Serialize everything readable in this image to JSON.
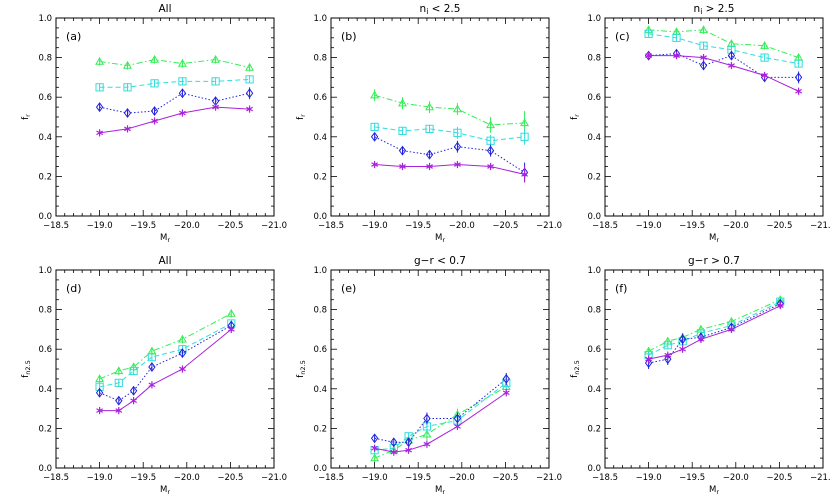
{
  "colors": {
    "green": "#33ee55",
    "cyan": "#33dddd",
    "blue": "#2222dd",
    "magenta": "#aa22dd",
    "axis": "#000000"
  },
  "chart_data": [
    {
      "type": "line",
      "panel_label": "(a)",
      "title": "All",
      "xlabel": "Mr",
      "ylabel": "fr",
      "xlim": [
        -18.5,
        -21.0
      ],
      "ylim": [
        0.0,
        1.0
      ],
      "xticks": [
        "-18.5",
        "-19.0",
        "-19.5",
        "-20.0",
        "-20.5",
        "-21.0"
      ],
      "yticks": [
        "0.0",
        "0.2",
        "0.4",
        "0.6",
        "0.8",
        "1.0"
      ],
      "series": [
        {
          "color": "green",
          "marker": "triangle",
          "style": "dashdot",
          "x": [
            -19.0,
            -19.32,
            -19.63,
            -19.95,
            -20.33,
            -20.72
          ],
          "y": [
            0.78,
            0.76,
            0.79,
            0.77,
            0.79,
            0.75
          ],
          "err": [
            0.02,
            0.02,
            0.02,
            0.02,
            0.02,
            0.02
          ]
        },
        {
          "color": "cyan",
          "marker": "square",
          "style": "dashed",
          "x": [
            -19.0,
            -19.32,
            -19.63,
            -19.95,
            -20.33,
            -20.72
          ],
          "y": [
            0.65,
            0.65,
            0.67,
            0.68,
            0.68,
            0.69
          ],
          "err": [
            0.02,
            0.02,
            0.02,
            0.02,
            0.02,
            0.02
          ]
        },
        {
          "color": "blue",
          "marker": "diamond",
          "style": "dotted",
          "x": [
            -19.0,
            -19.32,
            -19.63,
            -19.95,
            -20.33,
            -20.72
          ],
          "y": [
            0.55,
            0.52,
            0.53,
            0.62,
            0.58,
            0.62
          ],
          "err": [
            0.02,
            0.02,
            0.02,
            0.02,
            0.02,
            0.03
          ]
        },
        {
          "color": "magenta",
          "marker": "asterisk",
          "style": "solid",
          "x": [
            -19.0,
            -19.32,
            -19.63,
            -19.95,
            -20.33,
            -20.72
          ],
          "y": [
            0.42,
            0.44,
            0.48,
            0.52,
            0.55,
            0.54
          ],
          "err": [
            0.01,
            0.01,
            0.01,
            0.01,
            0.01,
            0.01
          ]
        }
      ]
    },
    {
      "type": "line",
      "panel_label": "(b)",
      "title": "ni < 2.5",
      "title_main": "n",
      "title_sub": "i",
      "title_rest": " < 2.5",
      "xlabel": "Mr",
      "ylabel": "fr",
      "xlim": [
        -18.5,
        -21.0
      ],
      "ylim": [
        0.0,
        1.0
      ],
      "xticks": [
        "-18.5",
        "-19.0",
        "-19.5",
        "-20.0",
        "-20.5",
        "-21.0"
      ],
      "yticks": [
        "0.0",
        "0.2",
        "0.4",
        "0.6",
        "0.8",
        "1.0"
      ],
      "series": [
        {
          "color": "green",
          "marker": "triangle",
          "style": "dashdot",
          "x": [
            -19.0,
            -19.32,
            -19.63,
            -19.95,
            -20.33,
            -20.72
          ],
          "y": [
            0.61,
            0.57,
            0.55,
            0.54,
            0.46,
            0.47
          ],
          "err": [
            0.03,
            0.03,
            0.03,
            0.03,
            0.04,
            0.06
          ]
        },
        {
          "color": "cyan",
          "marker": "square",
          "style": "dashed",
          "x": [
            -19.0,
            -19.32,
            -19.63,
            -19.95,
            -20.33,
            -20.72
          ],
          "y": [
            0.45,
            0.43,
            0.44,
            0.42,
            0.38,
            0.4
          ],
          "err": [
            0.02,
            0.02,
            0.02,
            0.03,
            0.03,
            0.04
          ]
        },
        {
          "color": "blue",
          "marker": "diamond",
          "style": "dotted",
          "x": [
            -19.0,
            -19.32,
            -19.63,
            -19.95,
            -20.33,
            -20.72
          ],
          "y": [
            0.4,
            0.33,
            0.31,
            0.35,
            0.33,
            0.22
          ],
          "err": [
            0.02,
            0.02,
            0.02,
            0.03,
            0.03,
            0.05
          ]
        },
        {
          "color": "magenta",
          "marker": "asterisk",
          "style": "solid",
          "x": [
            -19.0,
            -19.32,
            -19.63,
            -19.95,
            -20.33,
            -20.72
          ],
          "y": [
            0.26,
            0.25,
            0.25,
            0.26,
            0.25,
            0.21
          ],
          "err": [
            0.01,
            0.01,
            0.01,
            0.01,
            0.01,
            0.04
          ]
        }
      ]
    },
    {
      "type": "line",
      "panel_label": "(c)",
      "title": "ni > 2.5",
      "title_main": "n",
      "title_sub": "i",
      "title_rest": " > 2.5",
      "xlabel": "Mr",
      "ylabel": "fr",
      "xlim": [
        -18.5,
        -21.0
      ],
      "ylim": [
        0.0,
        1.0
      ],
      "xticks": [
        "-18.5",
        "-19.0",
        "-19.5",
        "-20.0",
        "-20.5",
        "-21.0"
      ],
      "yticks": [
        "0.0",
        "0.2",
        "0.4",
        "0.6",
        "0.8",
        "1.0"
      ],
      "series": [
        {
          "color": "green",
          "marker": "triangle",
          "style": "dashdot",
          "x": [
            -19.0,
            -19.32,
            -19.63,
            -19.95,
            -20.33,
            -20.72
          ],
          "y": [
            0.94,
            0.93,
            0.94,
            0.87,
            0.86,
            0.8
          ],
          "err": [
            0.02,
            0.02,
            0.02,
            0.02,
            0.02,
            0.02
          ]
        },
        {
          "color": "cyan",
          "marker": "square",
          "style": "dashed",
          "x": [
            -19.0,
            -19.32,
            -19.63,
            -19.95,
            -20.33,
            -20.72
          ],
          "y": [
            0.92,
            0.9,
            0.86,
            0.84,
            0.8,
            0.77
          ],
          "err": [
            0.02,
            0.02,
            0.02,
            0.02,
            0.02,
            0.02
          ]
        },
        {
          "color": "blue",
          "marker": "diamond",
          "style": "dotted",
          "x": [
            -19.0,
            -19.32,
            -19.63,
            -19.95,
            -20.33,
            -20.72
          ],
          "y": [
            0.81,
            0.82,
            0.76,
            0.81,
            0.7,
            0.7
          ],
          "err": [
            0.02,
            0.02,
            0.02,
            0.02,
            0.02,
            0.03
          ]
        },
        {
          "color": "magenta",
          "marker": "asterisk",
          "style": "solid",
          "x": [
            -19.0,
            -19.32,
            -19.63,
            -19.95,
            -20.33,
            -20.72
          ],
          "y": [
            0.81,
            0.81,
            0.8,
            0.76,
            0.71,
            0.63
          ],
          "err": [
            0.01,
            0.01,
            0.01,
            0.01,
            0.01,
            0.01
          ]
        }
      ]
    },
    {
      "type": "line",
      "panel_label": "(d)",
      "title": "All",
      "xlabel": "Mr",
      "ylabel": "fn2.5",
      "xlim": [
        -18.5,
        -21.0
      ],
      "ylim": [
        0.0,
        1.0
      ],
      "xticks": [
        "-18.5",
        "-19.0",
        "-19.5",
        "-20.0",
        "-20.5",
        "-21.0"
      ],
      "yticks": [
        "0.0",
        "0.2",
        "0.4",
        "0.6",
        "0.8",
        "1.0"
      ],
      "series": [
        {
          "color": "green",
          "marker": "triangle",
          "style": "dashdot",
          "x": [
            -19.0,
            -19.22,
            -19.39,
            -19.6,
            -19.95,
            -20.51
          ],
          "y": [
            0.45,
            0.49,
            0.51,
            0.59,
            0.65,
            0.78
          ],
          "err": [
            0.02,
            0.02,
            0.02,
            0.02,
            0.02,
            0.02
          ]
        },
        {
          "color": "cyan",
          "marker": "square",
          "style": "dashed",
          "x": [
            -19.0,
            -19.22,
            -19.39,
            -19.6,
            -19.95,
            -20.51
          ],
          "y": [
            0.41,
            0.43,
            0.49,
            0.56,
            0.6,
            0.73
          ],
          "err": [
            0.02,
            0.02,
            0.02,
            0.02,
            0.02,
            0.02
          ]
        },
        {
          "color": "blue",
          "marker": "diamond",
          "style": "dotted",
          "x": [
            -19.0,
            -19.22,
            -19.39,
            -19.6,
            -19.95,
            -20.51
          ],
          "y": [
            0.38,
            0.34,
            0.39,
            0.51,
            0.58,
            0.72
          ],
          "err": [
            0.02,
            0.02,
            0.02,
            0.02,
            0.02,
            0.02
          ]
        },
        {
          "color": "magenta",
          "marker": "asterisk",
          "style": "solid",
          "x": [
            -19.0,
            -19.22,
            -19.39,
            -19.6,
            -19.95,
            -20.51
          ],
          "y": [
            0.29,
            0.29,
            0.34,
            0.42,
            0.5,
            0.7
          ],
          "err": [
            0.01,
            0.01,
            0.01,
            0.01,
            0.01,
            0.01
          ]
        }
      ]
    },
    {
      "type": "line",
      "panel_label": "(e)",
      "title": "g-r < 0.7",
      "xlabel": "Mr",
      "ylabel": "fn2.5",
      "xlim": [
        -18.5,
        -21.0
      ],
      "ylim": [
        0.0,
        1.0
      ],
      "xticks": [
        "-18.5",
        "-19.0",
        "-19.5",
        "-20.0",
        "-20.5",
        "-21.0"
      ],
      "yticks": [
        "0.0",
        "0.2",
        "0.4",
        "0.6",
        "0.8",
        "1.0"
      ],
      "series": [
        {
          "color": "green",
          "marker": "triangle",
          "style": "dashdot",
          "x": [
            -19.0,
            -19.22,
            -19.39,
            -19.6,
            -19.95,
            -20.51
          ],
          "y": [
            0.05,
            0.09,
            0.14,
            0.17,
            0.27,
            0.41
          ],
          "err": [
            0.02,
            0.02,
            0.02,
            0.03,
            0.03,
            0.03
          ]
        },
        {
          "color": "cyan",
          "marker": "square",
          "style": "dashed",
          "x": [
            -19.0,
            -19.22,
            -19.39,
            -19.6,
            -19.95,
            -20.51
          ],
          "y": [
            0.09,
            0.1,
            0.16,
            0.21,
            0.24,
            0.43
          ],
          "err": [
            0.02,
            0.02,
            0.02,
            0.03,
            0.03,
            0.03
          ]
        },
        {
          "color": "blue",
          "marker": "diamond",
          "style": "dotted",
          "x": [
            -19.0,
            -19.22,
            -19.39,
            -19.6,
            -19.95,
            -20.51
          ],
          "y": [
            0.15,
            0.13,
            0.13,
            0.25,
            0.25,
            0.45
          ],
          "err": [
            0.02,
            0.02,
            0.02,
            0.03,
            0.03,
            0.03
          ]
        },
        {
          "color": "magenta",
          "marker": "asterisk",
          "style": "solid",
          "x": [
            -19.0,
            -19.22,
            -19.39,
            -19.6,
            -19.95,
            -20.51
          ],
          "y": [
            0.1,
            0.08,
            0.09,
            0.12,
            0.21,
            0.38
          ],
          "err": [
            0.01,
            0.01,
            0.01,
            0.01,
            0.01,
            0.01
          ]
        }
      ]
    },
    {
      "type": "line",
      "panel_label": "(f)",
      "title": "g-r > 0.7",
      "xlabel": "Mr",
      "ylabel": "fn2.5",
      "xlim": [
        -18.5,
        -21.0
      ],
      "ylim": [
        0.0,
        1.0
      ],
      "xticks": [
        "-18.5",
        "-19.0",
        "-19.5",
        "-20.0",
        "-20.5",
        "-21.0"
      ],
      "yticks": [
        "0.0",
        "0.2",
        "0.4",
        "0.6",
        "0.8",
        "1.0"
      ],
      "series": [
        {
          "color": "green",
          "marker": "triangle",
          "style": "dashdot",
          "x": [
            -19.0,
            -19.22,
            -19.39,
            -19.6,
            -19.95,
            -20.51
          ],
          "y": [
            0.59,
            0.64,
            0.66,
            0.7,
            0.74,
            0.85
          ],
          "err": [
            0.02,
            0.02,
            0.02,
            0.02,
            0.02,
            0.02
          ]
        },
        {
          "color": "cyan",
          "marker": "square",
          "style": "dashed",
          "x": [
            -19.0,
            -19.22,
            -19.39,
            -19.6,
            -19.95,
            -20.51
          ],
          "y": [
            0.57,
            0.62,
            0.64,
            0.68,
            0.72,
            0.84
          ],
          "err": [
            0.02,
            0.02,
            0.02,
            0.02,
            0.02,
            0.02
          ]
        },
        {
          "color": "blue",
          "marker": "diamond",
          "style": "dotted",
          "x": [
            -19.0,
            -19.22,
            -19.39,
            -19.6,
            -19.95,
            -20.51
          ],
          "y": [
            0.53,
            0.55,
            0.65,
            0.66,
            0.71,
            0.83
          ],
          "err": [
            0.03,
            0.03,
            0.03,
            0.02,
            0.02,
            0.02
          ]
        },
        {
          "color": "magenta",
          "marker": "asterisk",
          "style": "solid",
          "x": [
            -19.0,
            -19.22,
            -19.39,
            -19.6,
            -19.95,
            -20.51
          ],
          "y": [
            0.55,
            0.57,
            0.6,
            0.65,
            0.7,
            0.82
          ],
          "err": [
            0.01,
            0.01,
            0.01,
            0.01,
            0.01,
            0.01
          ]
        }
      ]
    }
  ]
}
